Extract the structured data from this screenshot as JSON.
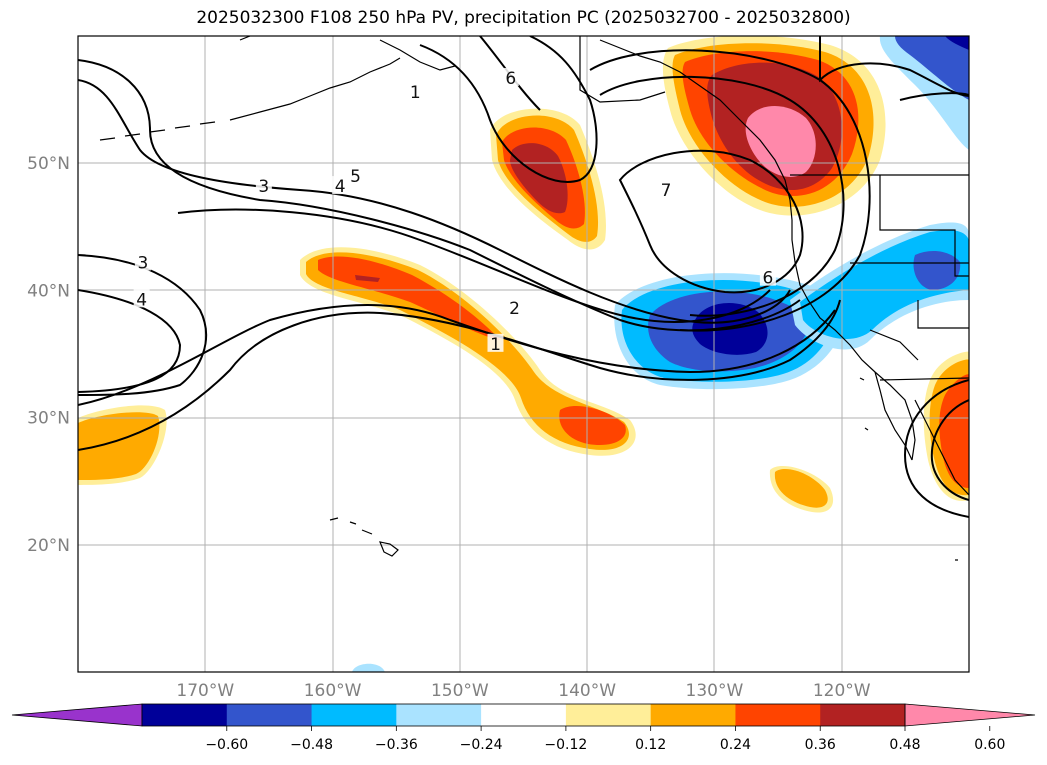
{
  "title": "2025032300 F108 250 hPa PV, precipitation PC (2025032700 - 2025032800)",
  "map": {
    "projection": "lat-lon",
    "lon_range": [
      -180,
      -110
    ],
    "lat_range": [
      10,
      60
    ],
    "lat_ticks": [
      {
        "value": 50,
        "label": "50°N"
      },
      {
        "value": 40,
        "label": "40°N"
      },
      {
        "value": 30,
        "label": "30°N"
      },
      {
        "value": 20,
        "label": "20°N"
      }
    ],
    "lon_ticks": [
      {
        "value": -170,
        "label": "170°W"
      },
      {
        "value": -160,
        "label": "160°W"
      },
      {
        "value": -150,
        "label": "150°W"
      },
      {
        "value": -140,
        "label": "140°W"
      },
      {
        "value": -130,
        "label": "130°W"
      },
      {
        "value": -120,
        "label": "120°W"
      }
    ],
    "grid": true
  },
  "pv_contour_labels": [
    {
      "text": "1",
      "lon": -153.5,
      "lat": 55.6
    },
    {
      "text": "6",
      "lon": -146.0,
      "lat": 56.7
    },
    {
      "text": "5",
      "lon": -158.2,
      "lat": 49.0
    },
    {
      "text": "4",
      "lon": -159.4,
      "lat": 48.2
    },
    {
      "text": "3",
      "lon": -165.4,
      "lat": 48.2
    },
    {
      "text": "3",
      "lon": -174.9,
      "lat": 42.2
    },
    {
      "text": "4",
      "lon": -175.0,
      "lat": 39.3
    },
    {
      "text": "2",
      "lon": -145.7,
      "lat": 38.6
    },
    {
      "text": "1",
      "lon": -147.2,
      "lat": 35.8
    },
    {
      "text": "7",
      "lon": -133.8,
      "lat": 47.9
    },
    {
      "text": "6",
      "lon": -125.8,
      "lat": 41.0
    }
  ],
  "colorbar": {
    "colors": [
      "#9933cc",
      "#000099",
      "#3355cc",
      "#00bbff",
      "#aae3ff",
      "#ffffff",
      "#ffee99",
      "#ffaa00",
      "#ff4400",
      "#b22222",
      "#ff88aa"
    ],
    "labels": [
      "−0.60",
      "−0.48",
      "−0.36",
      "−0.24",
      "−0.12",
      "0.12",
      "0.24",
      "0.36",
      "0.48",
      "0.60"
    ],
    "extend": "both"
  }
}
